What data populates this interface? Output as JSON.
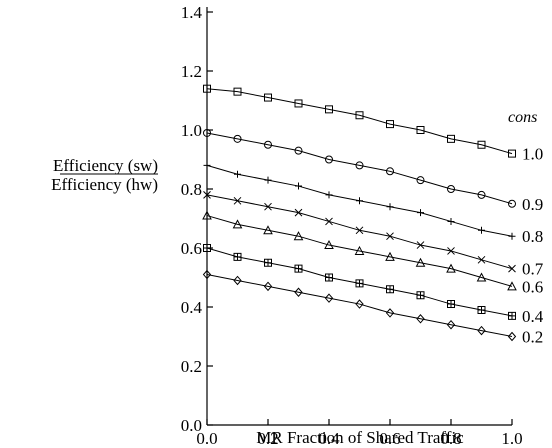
{
  "chart_data": {
    "type": "line",
    "title": "",
    "xlabel": "MR Fraction of Shared Traffic",
    "ylabel_top": "Efficiency (sw)",
    "ylabel_bottom": "Efficiency (hw)",
    "xlim": [
      0.0,
      1.0
    ],
    "ylim": [
      0.0,
      1.4
    ],
    "x_ticks": [
      "0.0",
      "0.2",
      "0.4",
      "0.6",
      "0.8",
      "1.0"
    ],
    "y_ticks": [
      "0.0",
      "0.2",
      "0.4",
      "0.6",
      "0.8",
      "1.0",
      "1.2",
      "1.4"
    ],
    "legend_title": "cons",
    "grid": false,
    "x": [
      0.0,
      0.1,
      0.2,
      0.3,
      0.4,
      0.5,
      0.6,
      0.7,
      0.8,
      0.9,
      1.0
    ],
    "series": [
      {
        "name": "1.0",
        "marker": "square",
        "values": [
          1.14,
          1.13,
          1.11,
          1.09,
          1.07,
          1.05,
          1.02,
          1.0,
          0.97,
          0.95,
          0.92
        ]
      },
      {
        "name": "0.9",
        "marker": "circle",
        "values": [
          0.99,
          0.97,
          0.95,
          0.93,
          0.9,
          0.88,
          0.86,
          0.83,
          0.8,
          0.78,
          0.75
        ]
      },
      {
        "name": "0.8",
        "marker": "plus",
        "values": [
          0.88,
          0.85,
          0.83,
          0.81,
          0.78,
          0.76,
          0.74,
          0.72,
          0.69,
          0.66,
          0.64
        ]
      },
      {
        "name": "0.7",
        "marker": "x",
        "values": [
          0.78,
          0.76,
          0.74,
          0.72,
          0.69,
          0.66,
          0.64,
          0.61,
          0.59,
          0.56,
          0.53
        ]
      },
      {
        "name": "0.6",
        "marker": "triangle",
        "values": [
          0.71,
          0.68,
          0.66,
          0.64,
          0.61,
          0.59,
          0.57,
          0.55,
          0.53,
          0.5,
          0.47
        ]
      },
      {
        "name": "0.4",
        "marker": "boxed-plus",
        "values": [
          0.6,
          0.57,
          0.55,
          0.53,
          0.5,
          0.48,
          0.46,
          0.44,
          0.41,
          0.39,
          0.37
        ]
      },
      {
        "name": "0.2",
        "marker": "diamond",
        "values": [
          0.51,
          0.49,
          0.47,
          0.45,
          0.43,
          0.41,
          0.38,
          0.36,
          0.34,
          0.32,
          0.3
        ]
      }
    ]
  }
}
